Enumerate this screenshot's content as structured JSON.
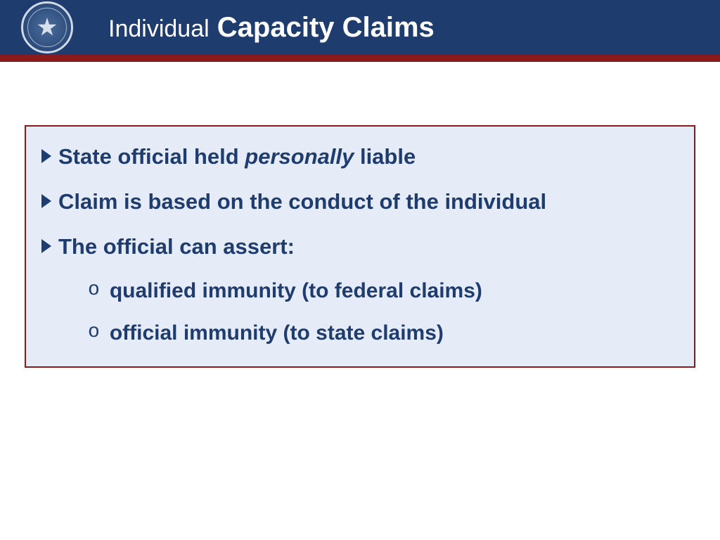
{
  "colors": {
    "header_bg": "#1f3c6e",
    "accent_bar": "#8b1a1a",
    "box_bg": "#e6ecf7",
    "box_border": "#8b1a1a",
    "text": "#1f3c6e",
    "title_text": "#ffffff"
  },
  "header": {
    "title_light": "Individual",
    "title_bold": "Capacity Claims",
    "title_fontsize_light": 34,
    "title_fontsize_bold": 40
  },
  "content": {
    "font_size": 31,
    "sub_font_size": 30,
    "bullets": [
      {
        "segments": [
          {
            "text": "State official held ",
            "italic": false
          },
          {
            "text": "personally",
            "italic": true
          },
          {
            "text": " liable",
            "italic": false
          }
        ]
      },
      {
        "segments": [
          {
            "text": "Claim is based on the conduct of the individual",
            "italic": false
          }
        ]
      },
      {
        "segments": [
          {
            "text": "The official can assert:",
            "italic": false
          }
        ],
        "subitems": [
          "qualified immunity (to federal claims)",
          "official immunity (to state claims)"
        ]
      }
    ]
  }
}
